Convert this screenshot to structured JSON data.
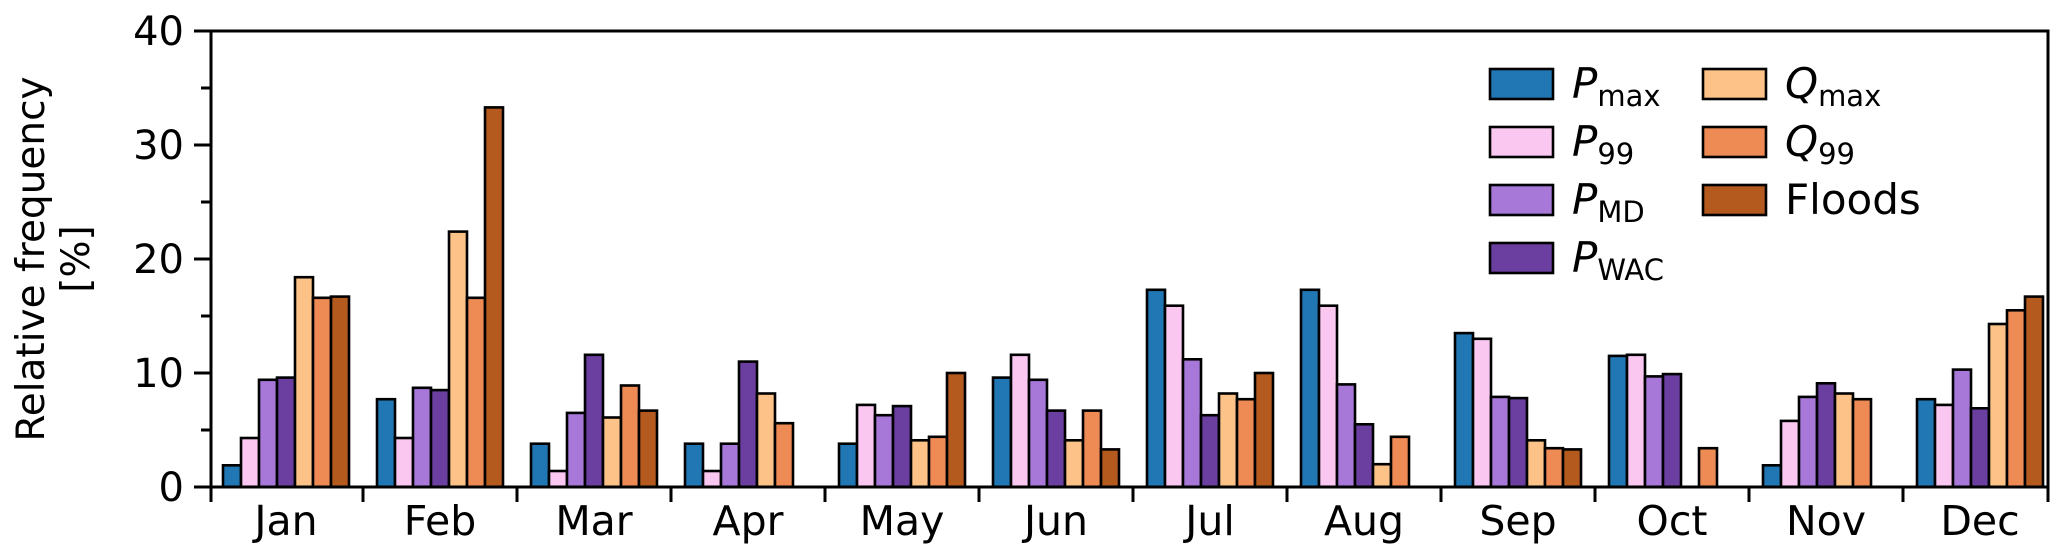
{
  "figure": {
    "background": "#ffffff",
    "axis_color": "#000000",
    "bar_edge_color": "#000000"
  },
  "chart_data": {
    "type": "bar",
    "title": "",
    "xlabel": "",
    "ylabel_lines": [
      "Relative frequency",
      "[%]"
    ],
    "ylim": [
      0,
      40
    ],
    "yticks": [
      0,
      10,
      20,
      30,
      40
    ],
    "yticks_minor": [
      5,
      15,
      25,
      35
    ],
    "grid": false,
    "legend_position": "upper-right, two columns, no frame",
    "categories": [
      "Jan",
      "Feb",
      "Mar",
      "Apr",
      "May",
      "Jun",
      "Jul",
      "Aug",
      "Sep",
      "Oct",
      "Nov",
      "Dec"
    ],
    "series": [
      {
        "name": "p-max",
        "label": "P_max",
        "color": "#2077b4",
        "values": [
          1.9,
          7.7,
          3.8,
          3.8,
          3.8,
          9.6,
          17.3,
          17.3,
          13.5,
          11.5,
          1.9,
          7.7
        ]
      },
      {
        "name": "p-99",
        "label": "P_99",
        "color": "#f9c7f0",
        "values": [
          4.3,
          4.3,
          1.4,
          1.4,
          7.2,
          11.6,
          15.9,
          15.9,
          13.0,
          11.6,
          5.8,
          7.2
        ]
      },
      {
        "name": "p-md",
        "label": "P_MD",
        "color": "#a778d8",
        "values": [
          9.4,
          8.7,
          6.5,
          3.8,
          6.3,
          9.4,
          11.2,
          9.0,
          7.9,
          9.7,
          7.9,
          10.3
        ]
      },
      {
        "name": "p-wac",
        "label": "P_WAC",
        "color": "#6b3fa0",
        "values": [
          9.6,
          8.5,
          11.6,
          11.0,
          7.1,
          6.7,
          6.3,
          5.5,
          7.8,
          9.9,
          9.1,
          6.9
        ]
      },
      {
        "name": "q-max",
        "label": "Q_max",
        "color": "#fcc287",
        "values": [
          18.4,
          22.4,
          6.1,
          8.2,
          4.1,
          4.1,
          8.2,
          2.0,
          4.1,
          0,
          8.2,
          14.3
        ]
      },
      {
        "name": "q-99",
        "label": "Q_99",
        "color": "#ee8a54",
        "values": [
          16.6,
          16.6,
          8.9,
          5.6,
          4.4,
          6.7,
          7.7,
          4.4,
          3.4,
          3.4,
          7.7,
          15.5
        ]
      },
      {
        "name": "floods",
        "label": "Floods",
        "color": "#b45a1f",
        "values": [
          16.7,
          33.3,
          6.7,
          0,
          10.0,
          3.3,
          10.0,
          0,
          3.3,
          0,
          0,
          16.7
        ]
      }
    ]
  }
}
